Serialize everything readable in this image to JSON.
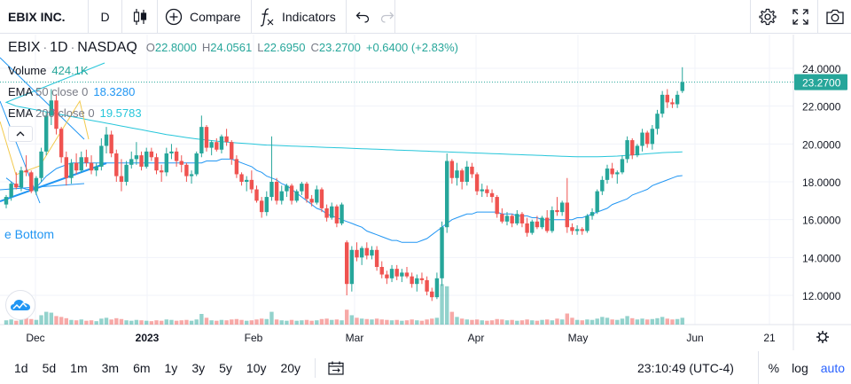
{
  "toolbar": {
    "symbol": "EBIX INC.",
    "interval": "D",
    "chart_type_icon": "candlestick-icon",
    "compare_label": "Compare",
    "indicators_label": "Indicators",
    "right_icons": [
      "settings-icon",
      "fullscreen-icon",
      "camera-icon"
    ]
  },
  "legend": {
    "ticker": "EBIX",
    "timeframe": "1D",
    "exchange": "NASDAQ",
    "open_label": "O",
    "open": "22.8000",
    "high_label": "H",
    "high": "24.0561",
    "low_label": "L",
    "low": "22.6950",
    "close_label": "C",
    "close": "23.2700",
    "change": "+0.6400 (+2.83%)",
    "volume_label": "Volume",
    "volume": "424.1K",
    "ema50_label": "EMA",
    "ema50_params": "50 close 0",
    "ema50_value": "18.3280",
    "ema200_label": "EMA",
    "ema200_params": "200 close 0",
    "ema200_value": "19.5783"
  },
  "pattern_label": "e Bottom",
  "colors": {
    "up": "#26a69a",
    "down": "#ef5350",
    "ema50": "#2196f3",
    "ema200": "#26c6da",
    "pattern_line": "#2196f3",
    "pattern_fib": "#f2c94c",
    "accent": "#2962ff"
  },
  "price_axis": {
    "ticks": [
      "24.0000",
      "22.0000",
      "20.0000",
      "18.0000",
      "16.0000",
      "14.0000",
      "12.0000"
    ],
    "last_price": "23.2700"
  },
  "time_axis": {
    "ticks": [
      "Dec",
      "2023",
      "Feb",
      "Mar",
      "Apr",
      "May",
      "Jun",
      "21"
    ]
  },
  "bottom_bar": {
    "ranges": [
      "1d",
      "5d",
      "1m",
      "3m",
      "6m",
      "1y",
      "3y",
      "5y",
      "10y",
      "20y"
    ],
    "clock": "23:10:49 (UTC-4)",
    "percent_label": "%",
    "log_label": "log",
    "auto_label": "auto"
  },
  "chart_data": {
    "type": "candlestick",
    "ylim": [
      11,
      25.4
    ],
    "last_price": 23.27,
    "candles": [
      [
        16.8,
        17.3,
        16.6,
        17.2
      ],
      [
        17.2,
        18.0,
        17.0,
        17.9
      ],
      [
        17.9,
        18.5,
        17.6,
        17.7
      ],
      [
        17.7,
        18.8,
        17.5,
        18.6
      ],
      [
        18.6,
        19.4,
        18.3,
        18.5
      ],
      [
        18.5,
        18.6,
        17.4,
        17.5
      ],
      [
        17.5,
        18.3,
        17.3,
        18.2
      ],
      [
        18.2,
        19.8,
        18.0,
        19.6
      ],
      [
        19.6,
        21.7,
        19.4,
        21.5
      ],
      [
        21.5,
        22.9,
        21.0,
        22.3
      ],
      [
        22.3,
        22.6,
        20.5,
        20.8
      ],
      [
        20.8,
        20.9,
        19.0,
        19.3
      ],
      [
        19.3,
        19.6,
        17.8,
        18.2
      ],
      [
        18.2,
        19.2,
        17.9,
        19.0
      ],
      [
        19.0,
        19.5,
        18.4,
        18.6
      ],
      [
        18.6,
        19.6,
        18.5,
        19.3
      ],
      [
        19.3,
        19.7,
        18.8,
        19.0
      ],
      [
        19.0,
        19.4,
        18.4,
        18.6
      ],
      [
        18.6,
        19.0,
        18.3,
        18.8
      ],
      [
        18.8,
        20.3,
        18.6,
        19.9
      ],
      [
        19.9,
        20.9,
        19.5,
        20.5
      ],
      [
        20.5,
        20.7,
        19.3,
        19.5
      ],
      [
        19.5,
        19.7,
        18.0,
        18.3
      ],
      [
        18.3,
        19.2,
        17.5,
        18.0
      ],
      [
        18.0,
        19.1,
        17.8,
        18.9
      ],
      [
        18.9,
        19.6,
        18.7,
        19.2
      ],
      [
        19.2,
        20.1,
        18.9,
        19.4
      ],
      [
        19.4,
        19.6,
        18.6,
        18.8
      ],
      [
        18.8,
        19.8,
        18.7,
        19.6
      ],
      [
        19.6,
        19.8,
        19.1,
        19.3
      ],
      [
        19.3,
        19.5,
        18.4,
        18.6
      ],
      [
        18.6,
        18.9,
        18.0,
        18.5
      ],
      [
        18.5,
        19.8,
        18.3,
        19.5
      ],
      [
        19.5,
        20.0,
        19.2,
        19.6
      ],
      [
        19.6,
        19.8,
        18.8,
        19.1
      ],
      [
        19.1,
        19.4,
        18.5,
        18.9
      ],
      [
        18.9,
        19.0,
        18.0,
        18.3
      ],
      [
        18.3,
        18.6,
        17.9,
        18.4
      ],
      [
        18.4,
        19.6,
        18.3,
        19.5
      ],
      [
        19.5,
        21.5,
        19.3,
        20.9
      ],
      [
        20.9,
        21.0,
        19.6,
        19.8
      ],
      [
        19.8,
        20.2,
        19.4,
        20.1
      ],
      [
        20.1,
        20.3,
        19.6,
        19.7
      ],
      [
        19.7,
        20.5,
        19.5,
        20.4
      ],
      [
        20.4,
        20.8,
        19.9,
        20.1
      ],
      [
        20.1,
        20.2,
        18.9,
        19.2
      ],
      [
        19.2,
        19.4,
        18.2,
        18.4
      ],
      [
        18.4,
        18.5,
        17.8,
        18.0
      ],
      [
        18.0,
        18.3,
        17.5,
        18.1
      ],
      [
        18.1,
        18.6,
        17.4,
        17.6
      ],
      [
        17.6,
        17.8,
        16.9,
        17.0
      ],
      [
        17.0,
        17.2,
        16.1,
        16.4
      ],
      [
        16.4,
        17.5,
        16.2,
        17.2
      ],
      [
        17.2,
        20.4,
        17.0,
        18.0
      ],
      [
        18.0,
        18.2,
        16.8,
        17.0
      ],
      [
        17.0,
        17.8,
        16.8,
        17.5
      ],
      [
        17.5,
        17.9,
        17.2,
        17.8
      ],
      [
        17.8,
        17.9,
        16.8,
        17.0
      ],
      [
        17.0,
        17.6,
        16.9,
        17.5
      ],
      [
        17.5,
        18.0,
        17.3,
        17.9
      ],
      [
        17.9,
        18.0,
        16.9,
        17.1
      ],
      [
        17.1,
        17.3,
        16.7,
        16.9
      ],
      [
        16.9,
        17.8,
        16.8,
        17.6
      ],
      [
        17.6,
        17.7,
        16.4,
        16.6
      ],
      [
        16.6,
        16.8,
        15.9,
        16.1
      ],
      [
        16.1,
        16.9,
        16.0,
        16.7
      ],
      [
        16.7,
        16.8,
        15.6,
        15.8
      ],
      [
        15.8,
        16.9,
        15.7,
        16.8
      ],
      [
        14.8,
        14.9,
        12.0,
        12.6
      ],
      [
        12.6,
        14.6,
        12.2,
        14.4
      ],
      [
        14.4,
        14.8,
        13.8,
        14.0
      ],
      [
        14.0,
        14.6,
        13.6,
        14.5
      ],
      [
        14.5,
        14.8,
        13.9,
        14.1
      ],
      [
        14.1,
        14.6,
        13.9,
        14.4
      ],
      [
        14.4,
        14.6,
        13.3,
        13.5
      ],
      [
        13.5,
        13.8,
        12.9,
        13.1
      ],
      [
        13.1,
        13.3,
        12.6,
        12.9
      ],
      [
        12.9,
        13.6,
        12.7,
        13.4
      ],
      [
        13.4,
        13.6,
        12.8,
        13.0
      ],
      [
        13.0,
        13.4,
        12.7,
        13.2
      ],
      [
        13.2,
        13.5,
        12.9,
        13.0
      ],
      [
        13.0,
        13.2,
        12.4,
        12.6
      ],
      [
        12.6,
        13.1,
        12.2,
        12.9
      ],
      [
        12.9,
        13.2,
        12.6,
        12.8
      ],
      [
        12.8,
        13.0,
        12.0,
        12.2
      ],
      [
        12.2,
        12.4,
        11.7,
        11.9
      ],
      [
        11.9,
        13.2,
        11.8,
        12.9
      ],
      [
        12.9,
        15.9,
        12.5,
        15.6
      ],
      [
        15.6,
        19.5,
        15.3,
        19.1
      ],
      [
        19.1,
        19.2,
        17.9,
        18.2
      ],
      [
        18.2,
        19.0,
        17.8,
        18.6
      ],
      [
        18.6,
        18.7,
        17.6,
        18.0
      ],
      [
        18.0,
        19.1,
        17.8,
        18.8
      ],
      [
        18.8,
        19.0,
        18.2,
        18.4
      ],
      [
        18.4,
        18.5,
        17.3,
        17.5
      ],
      [
        17.5,
        17.9,
        17.2,
        17.6
      ],
      [
        17.6,
        17.8,
        17.2,
        17.4
      ],
      [
        17.4,
        17.6,
        16.9,
        17.2
      ],
      [
        17.2,
        17.3,
        16.1,
        16.3
      ],
      [
        16.3,
        16.6,
        15.8,
        15.9
      ],
      [
        15.9,
        16.4,
        15.7,
        16.2
      ],
      [
        16.2,
        16.3,
        15.6,
        15.8
      ],
      [
        15.8,
        16.5,
        15.7,
        16.3
      ],
      [
        16.3,
        16.4,
        15.6,
        15.8
      ],
      [
        15.8,
        16.1,
        15.1,
        15.3
      ],
      [
        15.3,
        16.0,
        15.2,
        15.9
      ],
      [
        15.9,
        16.2,
        15.5,
        15.6
      ],
      [
        15.6,
        16.2,
        15.5,
        16.1
      ],
      [
        16.1,
        16.5,
        15.3,
        15.4
      ],
      [
        15.4,
        16.7,
        15.3,
        16.5
      ],
      [
        16.5,
        17.2,
        16.2,
        16.4
      ],
      [
        16.4,
        17.0,
        16.2,
        16.9
      ],
      [
        16.9,
        18.2,
        15.3,
        15.6
      ],
      [
        15.6,
        15.8,
        15.2,
        15.4
      ],
      [
        15.4,
        15.7,
        15.2,
        15.5
      ],
      [
        15.5,
        15.6,
        15.2,
        15.4
      ],
      [
        15.4,
        16.3,
        15.3,
        16.2
      ],
      [
        16.2,
        16.6,
        16.0,
        16.4
      ],
      [
        16.4,
        17.6,
        16.3,
        17.5
      ],
      [
        17.5,
        18.3,
        17.3,
        18.1
      ],
      [
        18.1,
        18.9,
        17.9,
        18.7
      ],
      [
        18.7,
        19.0,
        18.2,
        18.4
      ],
      [
        18.4,
        18.6,
        17.9,
        18.5
      ],
      [
        18.5,
        19.4,
        18.4,
        19.2
      ],
      [
        19.2,
        20.4,
        19.0,
        20.2
      ],
      [
        20.2,
        20.3,
        19.2,
        19.4
      ],
      [
        19.4,
        20.0,
        19.3,
        19.9
      ],
      [
        19.9,
        20.8,
        19.6,
        20.6
      ],
      [
        20.6,
        20.7,
        19.8,
        20.0
      ],
      [
        20.0,
        21.0,
        19.7,
        20.8
      ],
      [
        20.8,
        21.8,
        20.5,
        21.6
      ],
      [
        21.6,
        22.8,
        21.4,
        22.6
      ],
      [
        22.6,
        22.9,
        21.9,
        22.2
      ],
      [
        22.2,
        22.4,
        21.9,
        22.1
      ],
      [
        22.1,
        22.8,
        21.9,
        22.6
      ],
      [
        22.8,
        24.0561,
        22.695,
        23.27
      ]
    ],
    "volumes": [
      0.1,
      0.12,
      0.09,
      0.14,
      0.16,
      0.13,
      0.11,
      0.22,
      0.3,
      0.28,
      0.2,
      0.18,
      0.15,
      0.11,
      0.1,
      0.12,
      0.09,
      0.1,
      0.08,
      0.14,
      0.16,
      0.12,
      0.15,
      0.13,
      0.1,
      0.09,
      0.11,
      0.1,
      0.09,
      0.08,
      0.1,
      0.09,
      0.12,
      0.11,
      0.09,
      0.1,
      0.11,
      0.09,
      0.12,
      0.25,
      0.16,
      0.1,
      0.09,
      0.11,
      0.1,
      0.12,
      0.13,
      0.11,
      0.09,
      0.1,
      0.12,
      0.14,
      0.13,
      0.3,
      0.12,
      0.1,
      0.09,
      0.11,
      0.09,
      0.1,
      0.11,
      0.09,
      0.1,
      0.13,
      0.14,
      0.11,
      0.12,
      0.1,
      0.35,
      0.22,
      0.16,
      0.14,
      0.13,
      0.12,
      0.14,
      0.12,
      0.11,
      0.1,
      0.11,
      0.09,
      0.1,
      0.12,
      0.1,
      0.09,
      0.12,
      0.14,
      0.16,
      0.95,
      0.9,
      0.3,
      0.18,
      0.14,
      0.12,
      0.11,
      0.12,
      0.1,
      0.09,
      0.1,
      0.13,
      0.12,
      0.1,
      0.11,
      0.09,
      0.1,
      0.12,
      0.1,
      0.09,
      0.11,
      0.12,
      0.1,
      0.14,
      0.12,
      0.26,
      0.16,
      0.11,
      0.1,
      0.12,
      0.11,
      0.14,
      0.18,
      0.16,
      0.12,
      0.11,
      0.14,
      0.2,
      0.15,
      0.12,
      0.14,
      0.12,
      0.13,
      0.15,
      0.18,
      0.14,
      0.12,
      0.13,
      0.16
    ],
    "ema50": [
      18.2,
      18.0,
      17.8,
      17.7,
      17.6,
      17.6,
      17.7,
      18.0,
      18.3,
      18.5,
      18.7,
      18.8,
      18.9,
      19.0,
      19.0,
      19.0,
      19.0,
      19.0,
      19.0,
      19.0,
      19.0,
      19.0,
      19.0,
      19.0,
      19.0,
      19.0,
      19.0,
      19.0,
      19.0,
      19.0,
      19.0,
      19.0,
      19.0,
      19.0,
      19.0,
      19.0,
      19.0,
      19.0,
      19.0,
      19.0,
      19.1,
      19.1,
      19.1,
      19.2,
      19.2,
      19.2,
      19.1,
      19.0,
      18.9,
      18.8,
      18.6,
      18.5,
      18.3,
      18.2,
      18.1,
      17.9,
      17.8,
      17.6,
      17.4,
      17.2,
      17.0,
      16.8,
      16.6,
      16.5,
      16.3,
      16.2,
      16.1,
      16.0,
      15.9,
      15.8,
      15.7,
      15.6,
      15.4,
      15.3,
      15.2,
      15.1,
      15.0,
      14.9,
      14.9,
      14.8,
      14.8,
      14.8,
      14.8,
      14.9,
      15.0,
      15.2,
      15.4,
      15.6,
      15.8,
      16.0,
      16.1,
      16.2,
      16.3,
      16.3,
      16.4,
      16.4,
      16.4,
      16.4,
      16.4,
      16.3,
      16.3,
      16.3,
      16.2,
      16.2,
      16.2,
      16.1,
      16.1,
      16.0,
      16.0,
      16.0,
      16.0,
      16.0,
      16.0,
      16.0,
      16.1,
      16.1,
      16.2,
      16.3,
      16.4,
      16.5,
      16.6,
      16.8,
      16.9,
      17.0,
      17.1,
      17.3,
      17.4,
      17.5,
      17.6,
      17.8,
      17.9,
      18.0,
      18.1,
      18.2,
      18.3,
      18.33
    ],
    "ema200": [
      22.2,
      22.1,
      22.0,
      21.95,
      21.9,
      21.85,
      21.8,
      21.75,
      21.7,
      21.65,
      21.6,
      21.55,
      21.5,
      21.45,
      21.4,
      21.35,
      21.3,
      21.25,
      21.2,
      21.15,
      21.1,
      21.05,
      21.0,
      20.95,
      20.9,
      20.85,
      20.8,
      20.75,
      20.7,
      20.65,
      20.6,
      20.55,
      20.5,
      20.46,
      20.42,
      20.38,
      20.34,
      20.3,
      20.27,
      20.24,
      20.21,
      20.18,
      20.15,
      20.12,
      20.1,
      20.08,
      20.06,
      20.04,
      20.02,
      20.0,
      19.98,
      19.96,
      19.94,
      19.93,
      19.92,
      19.91,
      19.9,
      19.89,
      19.88,
      19.87,
      19.86,
      19.85,
      19.84,
      19.83,
      19.82,
      19.81,
      19.8,
      19.79,
      19.78,
      19.77,
      19.76,
      19.75,
      19.74,
      19.73,
      19.72,
      19.71,
      19.7,
      19.69,
      19.68,
      19.67,
      19.66,
      19.65,
      19.64,
      19.63,
      19.62,
      19.61,
      19.6,
      19.59,
      19.58,
      19.57,
      19.56,
      19.55,
      19.54,
      19.53,
      19.52,
      19.51,
      19.5,
      19.49,
      19.48,
      19.47,
      19.46,
      19.45,
      19.44,
      19.43,
      19.42,
      19.41,
      19.4,
      19.39,
      19.38,
      19.37,
      19.36,
      19.35,
      19.34,
      19.33,
      19.32,
      19.32,
      19.32,
      19.32,
      19.32,
      19.33,
      19.34,
      19.35,
      19.36,
      19.38,
      19.4,
      19.42,
      19.44,
      19.46,
      19.48,
      19.5,
      19.52,
      19.54,
      19.55,
      19.56,
      19.57,
      19.5783
    ]
  }
}
